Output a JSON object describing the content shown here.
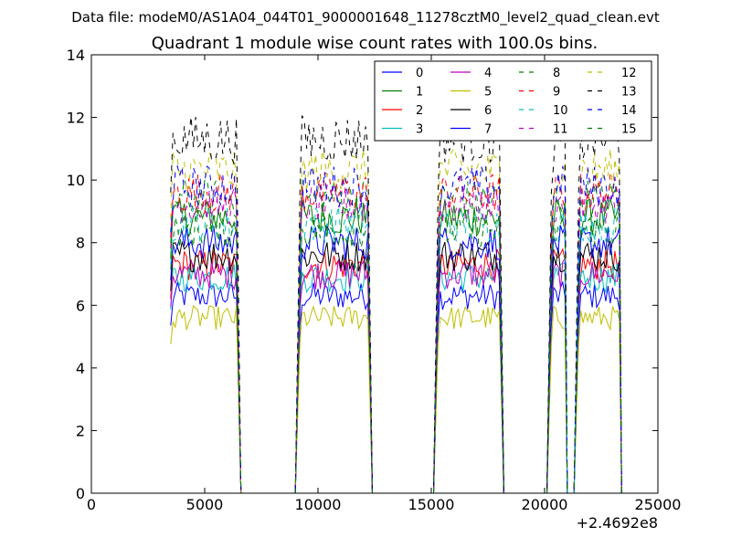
{
  "chart_data": {
    "type": "line",
    "suptitle": "Data file: modeM0/AS1A04_044T01_9000001648_11278cztM0_level2_quad_clean.evt",
    "title": "Quadrant 1 module wise count rates with 100.0s bins.",
    "xlabel": "",
    "ylabel": "",
    "x_offset_label": "+2.4692e8",
    "xlim": [
      0,
      25000
    ],
    "ylim": [
      0,
      14
    ],
    "x_ticks": [
      "0",
      "5000",
      "10000",
      "15000",
      "20000",
      "25000"
    ],
    "y_ticks": [
      "0",
      "2",
      "4",
      "6",
      "8",
      "10",
      "12",
      "14"
    ],
    "x_tick_values": [
      0,
      5000,
      10000,
      15000,
      20000,
      25000
    ],
    "y_tick_values": [
      0,
      2,
      4,
      6,
      8,
      10,
      12,
      14
    ],
    "bin_seconds": 100,
    "segments": [
      {
        "start": 3500,
        "end": 6400,
        "next_zero": 6600
      },
      {
        "start": 9200,
        "end": 12200,
        "next_zero": 12400
      },
      {
        "start": 15300,
        "end": 18000,
        "next_zero": 18200
      },
      {
        "start": 20300,
        "end": 20900,
        "next_zero": 21000
      },
      {
        "start": 21500,
        "end": 23300,
        "next_zero": 23400
      }
    ],
    "series": [
      {
        "name": "0",
        "color": "#0000ff",
        "dashed": false,
        "level": 6.3
      },
      {
        "name": "1",
        "color": "#008000",
        "dashed": false,
        "level": 8.8
      },
      {
        "name": "2",
        "color": "#ff0000",
        "dashed": false,
        "level": 7.3
      },
      {
        "name": "3",
        "color": "#00bfbf",
        "dashed": false,
        "level": 6.9
      },
      {
        "name": "4",
        "color": "#bf00bf",
        "dashed": false,
        "level": 7.0
      },
      {
        "name": "5",
        "color": "#bfbf00",
        "dashed": false,
        "level": 5.6
      },
      {
        "name": "6",
        "color": "#000000",
        "dashed": false,
        "level": 7.6
      },
      {
        "name": "7",
        "color": "#0000ff",
        "dashed": false,
        "level": 8.0
      },
      {
        "name": "8",
        "color": "#008000",
        "dashed": true,
        "level": 9.4
      },
      {
        "name": "9",
        "color": "#ff0000",
        "dashed": true,
        "level": 9.6
      },
      {
        "name": "10",
        "color": "#00bfbf",
        "dashed": true,
        "level": 8.6
      },
      {
        "name": "11",
        "color": "#bf00bf",
        "dashed": true,
        "level": 9.2
      },
      {
        "name": "12",
        "color": "#bfbf00",
        "dashed": true,
        "level": 10.3
      },
      {
        "name": "13",
        "color": "#000000",
        "dashed": true,
        "level": 11.3
      },
      {
        "name": "14",
        "color": "#0000ff",
        "dashed": true,
        "level": 9.8
      },
      {
        "name": "15",
        "color": "#008000",
        "dashed": true,
        "level": 8.4
      }
    ],
    "legend": {
      "location": "top-right",
      "columns": 4
    }
  }
}
